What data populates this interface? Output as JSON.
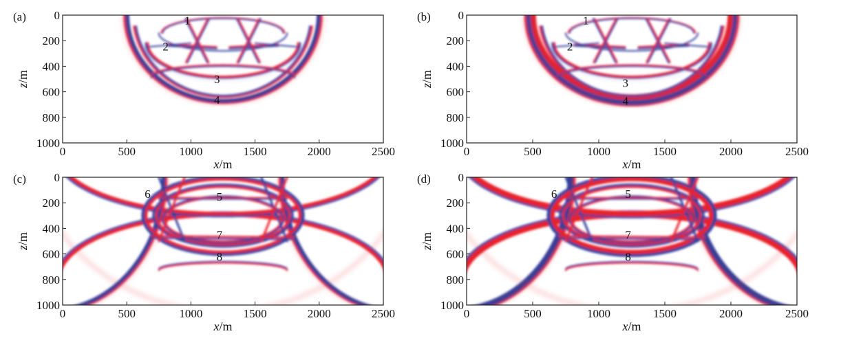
{
  "chart_data": [
    {
      "type": "heatmap",
      "panel_label": "(a)",
      "xlabel_var": "x",
      "xlabel_unit": "/m",
      "ylabel_var": "z",
      "ylabel_unit": "/m",
      "xlim": [
        0,
        2500
      ],
      "ylim": [
        0,
        1000
      ],
      "y_inverted": true,
      "x_ticks": [
        0,
        500,
        1000,
        1500,
        2000,
        2500
      ],
      "y_ticks": [
        0,
        200,
        400,
        600,
        800,
        1000
      ],
      "annotations": [
        {
          "text": "1",
          "x": 950,
          "z": 40
        },
        {
          "text": "2",
          "x": 780,
          "z": 245
        },
        {
          "text": "3",
          "x": 1180,
          "z": 500
        },
        {
          "text": "4",
          "x": 1180,
          "z": 660
        }
      ]
    },
    {
      "type": "heatmap",
      "panel_label": "(b)",
      "xlabel_var": "x",
      "xlabel_unit": "/m",
      "ylabel_var": "z",
      "ylabel_unit": "/m",
      "xlim": [
        0,
        2500
      ],
      "ylim": [
        0,
        1000
      ],
      "y_inverted": true,
      "x_ticks": [
        0,
        500,
        1000,
        1500,
        2000,
        2500
      ],
      "y_ticks": [
        0,
        200,
        400,
        600,
        800,
        1000
      ],
      "annotations": [
        {
          "text": "1",
          "x": 880,
          "z": 40
        },
        {
          "text": "2",
          "x": 760,
          "z": 245
        },
        {
          "text": "3",
          "x": 1180,
          "z": 530
        },
        {
          "text": "4",
          "x": 1180,
          "z": 670
        }
      ]
    },
    {
      "type": "heatmap",
      "panel_label": "(c)",
      "xlabel_var": "x",
      "xlabel_unit": "/m",
      "ylabel_var": "z",
      "ylabel_unit": "/m",
      "xlim": [
        0,
        2500
      ],
      "ylim": [
        0,
        1000
      ],
      "y_inverted": true,
      "x_ticks": [
        0,
        500,
        1000,
        1500,
        2000,
        2500
      ],
      "y_ticks": [
        0,
        200,
        400,
        600,
        800,
        1000
      ],
      "annotations": [
        {
          "text": "6",
          "x": 640,
          "z": 130
        },
        {
          "text": "5",
          "x": 1200,
          "z": 150
        },
        {
          "text": "7",
          "x": 1200,
          "z": 450
        },
        {
          "text": "8",
          "x": 1200,
          "z": 620
        }
      ]
    },
    {
      "type": "heatmap",
      "panel_label": "(d)",
      "xlabel_var": "x",
      "xlabel_unit": "/m",
      "ylabel_var": "z",
      "ylabel_unit": "/m",
      "xlim": [
        0,
        2500
      ],
      "ylim": [
        0,
        1000
      ],
      "y_inverted": true,
      "x_ticks": [
        0,
        500,
        1000,
        1500,
        2000,
        2500
      ],
      "y_ticks": [
        0,
        200,
        400,
        600,
        800,
        1000
      ],
      "annotations": [
        {
          "text": "6",
          "x": 640,
          "z": 130
        },
        {
          "text": "5",
          "x": 1200,
          "z": 130
        },
        {
          "text": "7",
          "x": 1200,
          "z": 450
        },
        {
          "text": "8",
          "x": 1200,
          "z": 620
        }
      ]
    }
  ],
  "colors": {
    "positive": "#e8212b",
    "negative": "#2f3f9b",
    "background": "#ffffff"
  }
}
